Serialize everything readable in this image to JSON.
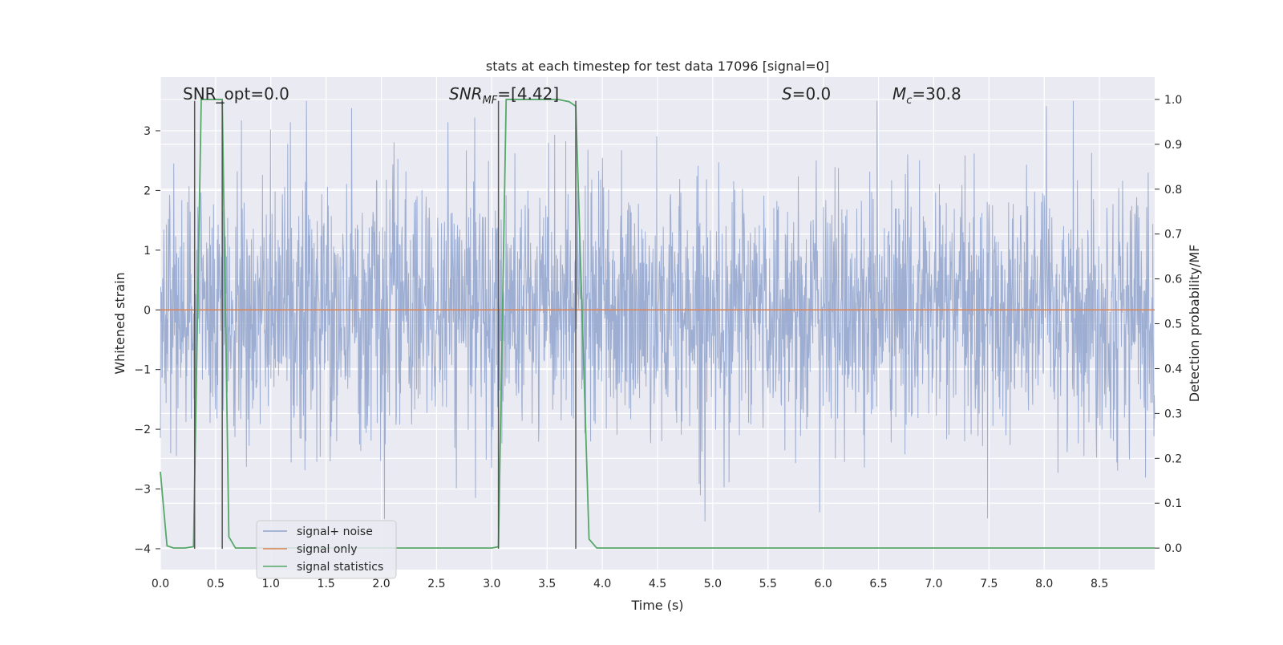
{
  "chart_data": {
    "type": "line",
    "title": "stats at each timestep for test data 17096 [signal=0]",
    "xlabel": "Time (s)",
    "ylabel": "Whitened strain",
    "y2label": "Detection probability/MF",
    "xlim": [
      0.0,
      9.0
    ],
    "ylim": [
      -4.35,
      3.9
    ],
    "y2lim": [
      -0.048,
      1.05
    ],
    "x_ticks": [
      "0.0",
      "0.5",
      "1.0",
      "1.5",
      "2.0",
      "2.5",
      "3.0",
      "3.5",
      "4.0",
      "4.5",
      "5.0",
      "5.5",
      "6.0",
      "6.5",
      "7.0",
      "7.5",
      "8.0",
      "8.5"
    ],
    "y_ticks": [
      "3",
      "2",
      "1",
      "0",
      "−1",
      "−2",
      "−3",
      "−4"
    ],
    "y2_ticks": [
      "1.0",
      "0.9",
      "0.8",
      "0.7",
      "0.6",
      "0.5",
      "0.4",
      "0.3",
      "0.2",
      "0.1",
      "0.0"
    ],
    "grid": true,
    "legend_position": "lower-left",
    "annotations": {
      "snr_opt": "SNR_opt=0.0",
      "snr_mf_main": "SNR",
      "snr_mf_sub": "MF",
      "snr_mf_value": "=[4.42]",
      "s_italic": "S",
      "s_value": "=0.0",
      "mc_main": "M",
      "mc_sub": "c",
      "mc_value": "=30.8"
    },
    "series": [
      {
        "name": "signal+ noise",
        "color": "#8fa3cc",
        "axis": "left",
        "description_values": {
          "typical_range": [
            -2.0,
            2.0
          ],
          "extremes": [
            -4.0,
            3.5
          ]
        }
      },
      {
        "name": "signal only",
        "color": "#dd8452",
        "axis": "left",
        "x": [
          0.0,
          9.0
        ],
        "y": [
          0.0,
          0.0
        ]
      },
      {
        "name": "signal statistics",
        "color": "#55a868",
        "axis": "right",
        "x": [
          0.0,
          0.06,
          0.12,
          0.22,
          0.3,
          0.37,
          0.5,
          0.56,
          0.62,
          0.68,
          1.0,
          2.5,
          3.0,
          3.06,
          3.13,
          3.4,
          3.6,
          3.7,
          3.76,
          3.88,
          3.95,
          4.5,
          9.0
        ],
        "y": [
          0.17,
          0.005,
          0.0,
          0.0,
          0.003,
          1.0,
          1.0,
          1.0,
          0.025,
          0.0,
          0.0,
          0.0,
          0.0,
          0.003,
          1.0,
          1.0,
          1.0,
          0.995,
          0.985,
          0.02,
          0.0,
          0.0,
          0.0
        ]
      }
    ],
    "vertical_lines": [
      0.31,
      0.56,
      3.06,
      3.76
    ]
  }
}
